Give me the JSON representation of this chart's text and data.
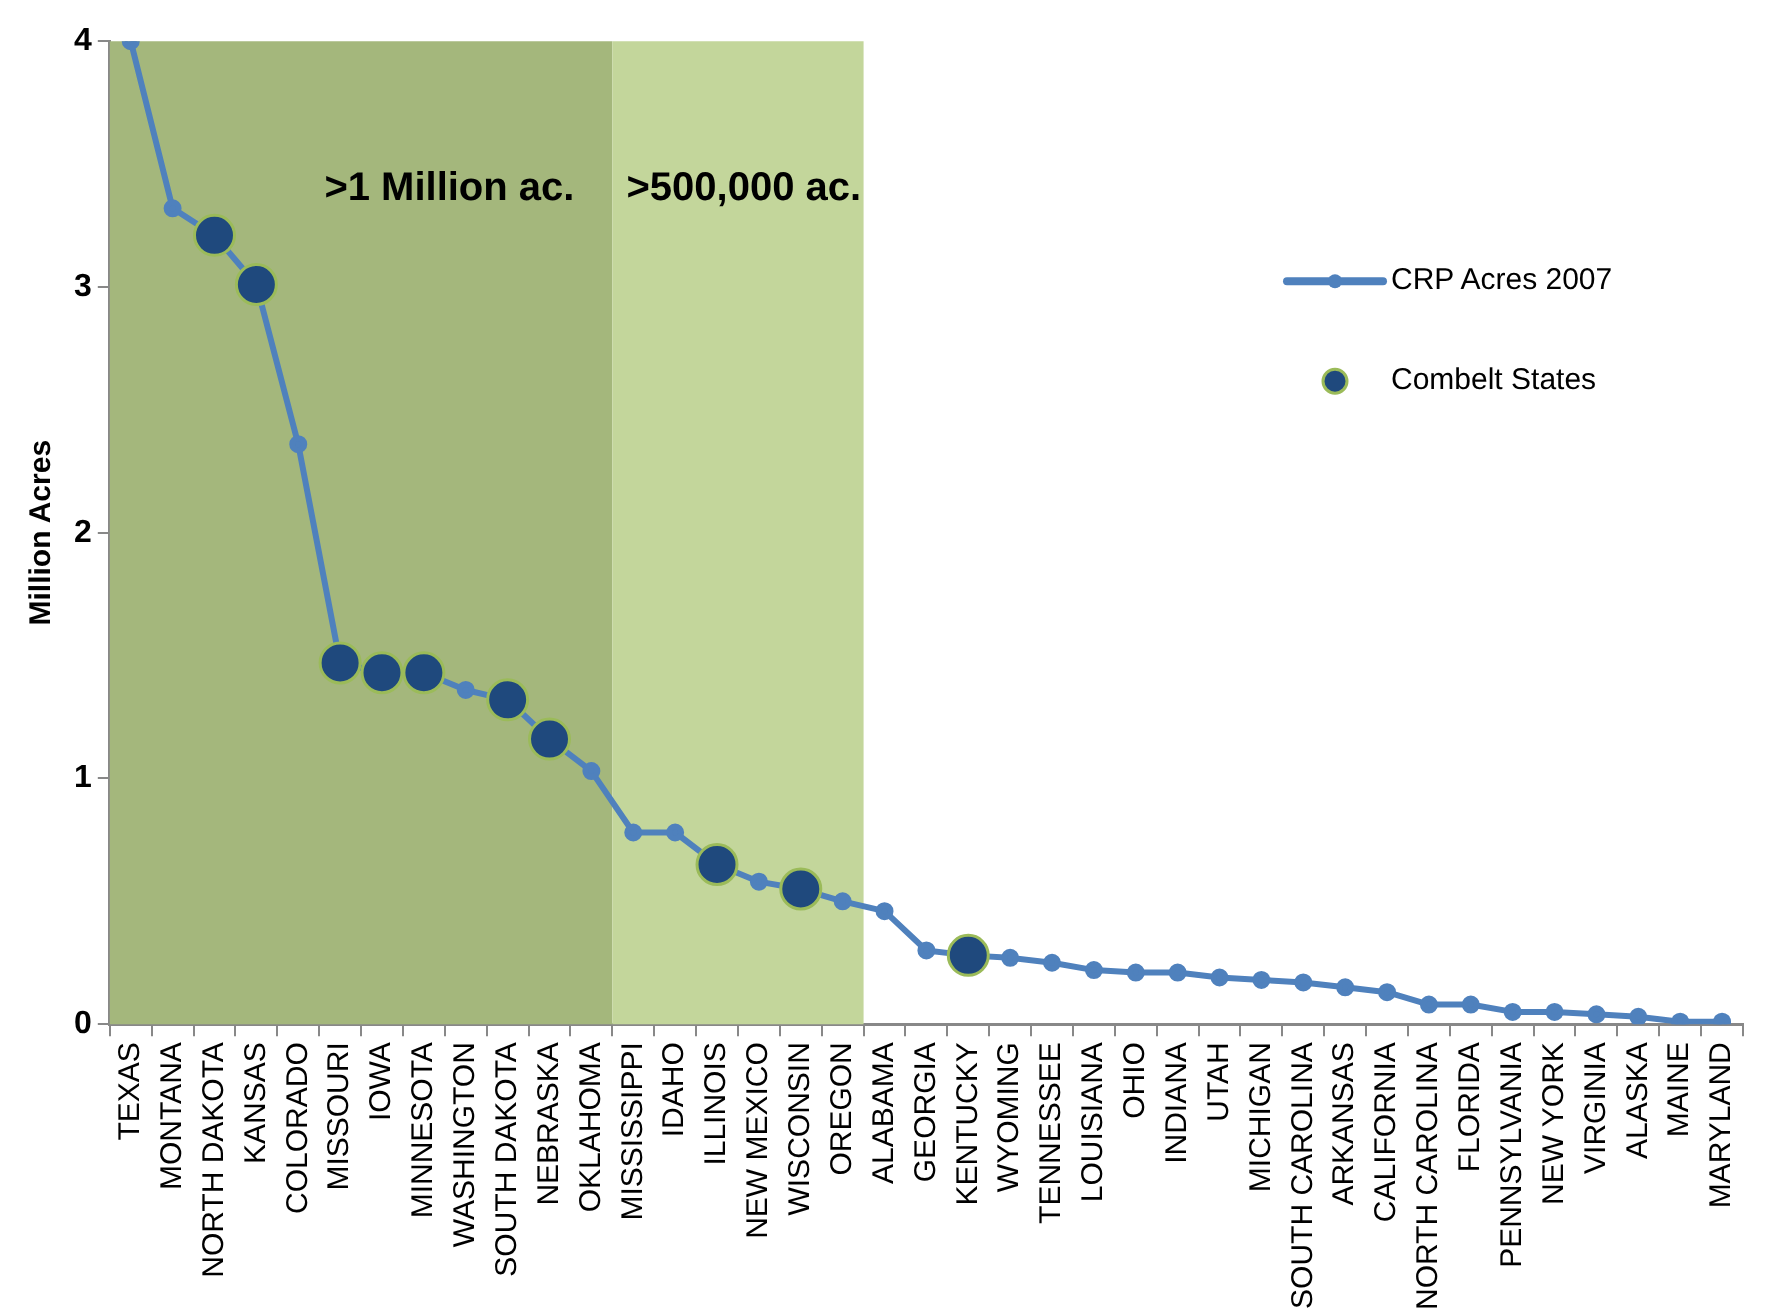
{
  "chart_data": {
    "type": "line",
    "ylabel": "Million Acres",
    "categories": [
      "TEXAS",
      "MONTANA",
      "NORTH DAKOTA",
      "KANSAS",
      "COLORADO",
      "MISSOURI",
      "IOWA",
      "MINNESOTA",
      "WASHINGTON",
      "SOUTH DAKOTA",
      "NEBRASKA",
      "OKLAHOMA",
      "MISSISSIPPI",
      "IDAHO",
      "ILLINOIS",
      "NEW MEXICO",
      "WISCONSIN",
      "OREGON",
      "ALABAMA",
      "GEORGIA",
      "KENTUCKY",
      "WYOMING",
      "TENNESSEE",
      "LOUISIANA",
      "OHIO",
      "INDIANA",
      "UTAH",
      "MICHIGAN",
      "SOUTH CAROLINA",
      "ARKANSAS",
      "CALIFORNIA",
      "NORTH CAROLINA",
      "FLORIDA",
      "PENNSYLVANIA",
      "NEW YORK",
      "VIRGINIA",
      "ALASKA",
      "MAINE",
      "MARYLAND"
    ],
    "series": [
      {
        "name": "CRP Acres 2007",
        "color": "#4f81bd",
        "values": [
          4.0,
          3.32,
          3.21,
          3.01,
          2.36,
          1.47,
          1.43,
          1.43,
          1.36,
          1.32,
          1.16,
          1.03,
          0.78,
          0.78,
          0.65,
          0.58,
          0.55,
          0.5,
          0.46,
          0.3,
          0.28,
          0.27,
          0.25,
          0.22,
          0.21,
          0.21,
          0.19,
          0.18,
          0.17,
          0.15,
          0.13,
          0.08,
          0.08,
          0.05,
          0.05,
          0.04,
          0.03,
          0.01,
          0.01
        ]
      },
      {
        "name": "Combelt States",
        "type": "scatter",
        "color": "#1f497d",
        "x": [
          "NORTH DAKOTA",
          "KANSAS",
          "MISSOURI",
          "IOWA",
          "MINNESOTA",
          "SOUTH DAKOTA",
          "NEBRASKA",
          "ILLINOIS",
          "WISCONSIN",
          "KENTUCKY"
        ],
        "values": [
          3.21,
          3.01,
          1.47,
          1.43,
          1.43,
          1.32,
          1.16,
          0.65,
          0.55,
          0.28
        ]
      }
    ],
    "bands": [
      {
        "axis": "x",
        "from": "TEXAS",
        "to": "OKLAHOMA",
        "label": ">1 Million ac.",
        "color": "#a4b77c"
      },
      {
        "axis": "x",
        "from": "MISSISSIPPI",
        "to": "OREGON",
        "label": ">500,000 ac.",
        "color": "#c3d69b"
      }
    ],
    "ylim": [
      0,
      4
    ],
    "yticks": [
      0,
      1,
      2,
      3,
      4
    ],
    "grid": false,
    "legend": "top right",
    "marker": "circle"
  }
}
